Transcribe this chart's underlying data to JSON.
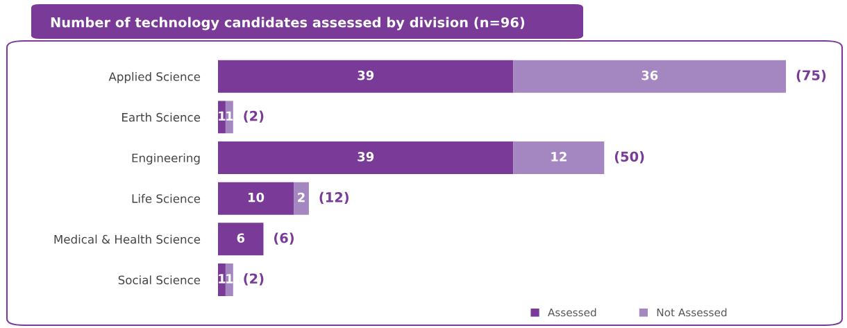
{
  "chart_data": {
    "type": "bar",
    "orientation": "horizontal",
    "stacked": true,
    "title": "Number of technology candidates assessed by division (n=96)",
    "categories": [
      "Applied Science",
      "Earth Science",
      "Engineering",
      "Life Science",
      "Medical & Health Science",
      "Social Science"
    ],
    "series": [
      {
        "name": "Assessed",
        "color": "#7a3b98",
        "values": [
          39,
          1,
          39,
          10,
          6,
          1
        ]
      },
      {
        "name": "Not Assessed",
        "color": "#a487c1",
        "values": [
          36,
          1,
          12,
          2,
          null,
          1
        ]
      }
    ],
    "data_labels": true,
    "totals": [
      "(75)",
      "(2)",
      "(50)",
      "(12)",
      "(6)",
      "(2)"
    ],
    "legend": "bottom right",
    "grid": false
  }
}
